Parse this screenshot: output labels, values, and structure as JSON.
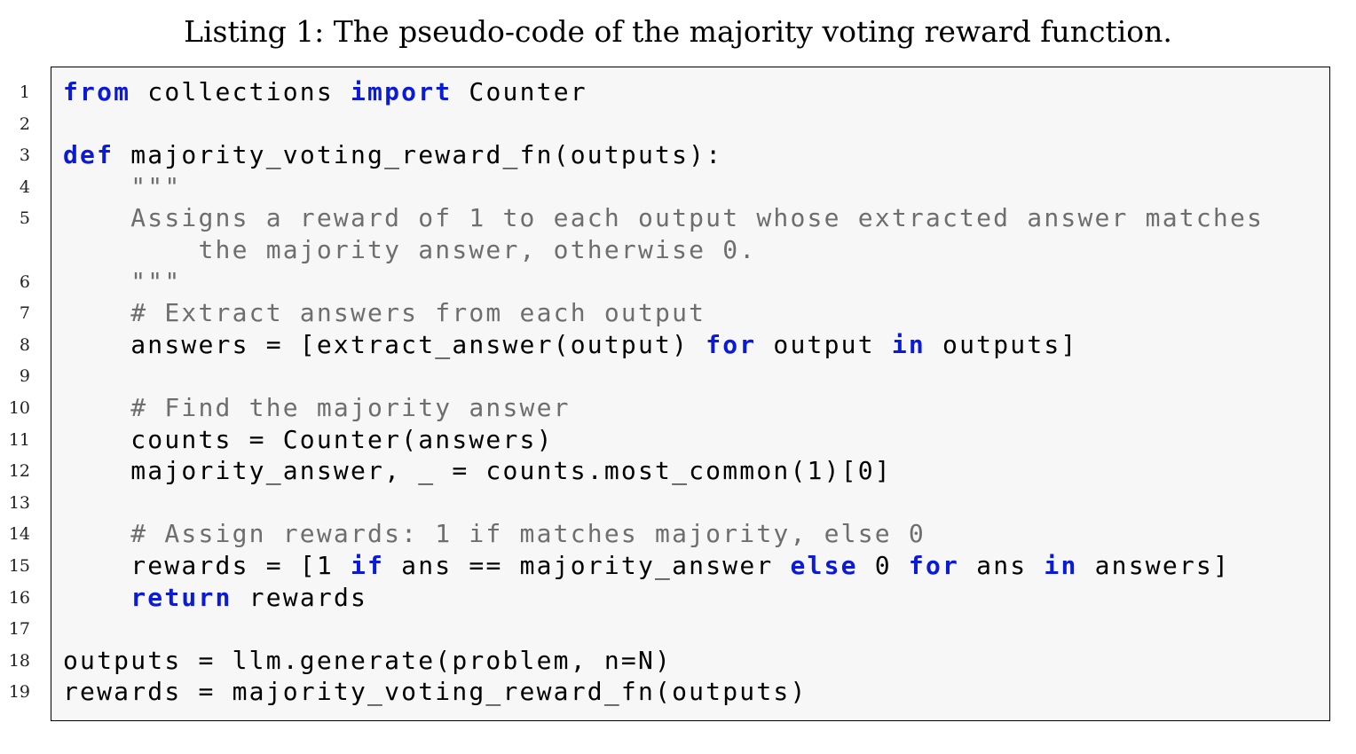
{
  "caption": "Listing 1: The pseudo-code of the majority voting reward function.",
  "lines": [
    {
      "n": "1",
      "tokens": [
        {
          "t": "kw",
          "v": "from"
        },
        {
          "t": "",
          "v": " collections "
        },
        {
          "t": "kw",
          "v": "import"
        },
        {
          "t": "",
          "v": " Counter"
        }
      ]
    },
    {
      "n": "2",
      "tokens": []
    },
    {
      "n": "3",
      "tokens": [
        {
          "t": "kw",
          "v": "def"
        },
        {
          "t": "",
          "v": " majority_voting_reward_fn(outputs):"
        }
      ]
    },
    {
      "n": "4",
      "tokens": [
        {
          "t": "st",
          "v": "    \"\"\""
        }
      ]
    },
    {
      "n": "5",
      "tokens": [
        {
          "t": "st",
          "v": "    Assigns a reward of 1 to each output whose extracted answer matches"
        }
      ]
    },
    {
      "n": "",
      "tokens": [
        {
          "t": "st",
          "v": "        the majority answer, otherwise 0."
        }
      ]
    },
    {
      "n": "6",
      "tokens": [
        {
          "t": "st",
          "v": "    \"\"\""
        }
      ]
    },
    {
      "n": "7",
      "tokens": [
        {
          "t": "cm",
          "v": "    # Extract answers from each output"
        }
      ]
    },
    {
      "n": "8",
      "tokens": [
        {
          "t": "",
          "v": "    answers = [extract_answer(output) "
        },
        {
          "t": "kw",
          "v": "for"
        },
        {
          "t": "",
          "v": " output "
        },
        {
          "t": "kw",
          "v": "in"
        },
        {
          "t": "",
          "v": " outputs]"
        }
      ]
    },
    {
      "n": "9",
      "tokens": []
    },
    {
      "n": "10",
      "tokens": [
        {
          "t": "cm",
          "v": "    # Find the majority answer"
        }
      ]
    },
    {
      "n": "11",
      "tokens": [
        {
          "t": "",
          "v": "    counts = Counter(answers)"
        }
      ]
    },
    {
      "n": "12",
      "tokens": [
        {
          "t": "",
          "v": "    majority_answer, _ = counts.most_common(1)[0]"
        }
      ]
    },
    {
      "n": "13",
      "tokens": []
    },
    {
      "n": "14",
      "tokens": [
        {
          "t": "cm",
          "v": "    # Assign rewards: 1 if matches majority, else 0"
        }
      ]
    },
    {
      "n": "15",
      "tokens": [
        {
          "t": "",
          "v": "    rewards = [1 "
        },
        {
          "t": "kw",
          "v": "if"
        },
        {
          "t": "",
          "v": " ans == majority_answer "
        },
        {
          "t": "kw",
          "v": "else"
        },
        {
          "t": "",
          "v": " 0 "
        },
        {
          "t": "kw",
          "v": "for"
        },
        {
          "t": "",
          "v": " ans "
        },
        {
          "t": "kw",
          "v": "in"
        },
        {
          "t": "",
          "v": " answers]"
        }
      ]
    },
    {
      "n": "16",
      "tokens": [
        {
          "t": "",
          "v": "    "
        },
        {
          "t": "kw",
          "v": "return"
        },
        {
          "t": "",
          "v": " rewards"
        }
      ]
    },
    {
      "n": "17",
      "tokens": []
    },
    {
      "n": "18",
      "tokens": [
        {
          "t": "",
          "v": "outputs = llm.generate(problem, n=N)"
        }
      ]
    },
    {
      "n": "19",
      "tokens": [
        {
          "t": "",
          "v": "rewards = majority_voting_reward_fn(outputs)"
        }
      ]
    }
  ],
  "colors": {
    "keyword": "#0b1ad6",
    "comment": "#6e6e6e",
    "background": "#f7f7f7"
  }
}
